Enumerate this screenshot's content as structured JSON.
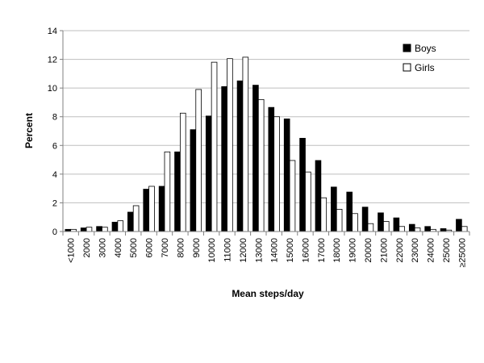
{
  "chart_data": {
    "type": "bar",
    "title": "",
    "xlabel": "Mean steps/day",
    "ylabel": "Percent",
    "ylim": [
      0,
      14
    ],
    "yticks": [
      0,
      2,
      4,
      6,
      8,
      10,
      12,
      14
    ],
    "grid": true,
    "legend_position": "top-right",
    "categories": [
      "<1000",
      "2000",
      "3000",
      "4000",
      "5000",
      "6000",
      "7000",
      "8000",
      "9000",
      "10000",
      "11000",
      "12000",
      "13000",
      "14000",
      "15000",
      "16000",
      "17000",
      "18000",
      "19000",
      "20000",
      "21000",
      "22000",
      "23000",
      "24000",
      "25000",
      "≥25000"
    ],
    "series": [
      {
        "name": "Boys",
        "color": "#000000",
        "values": [
          0.15,
          0.25,
          0.35,
          0.65,
          1.35,
          2.95,
          3.15,
          5.55,
          7.1,
          8.05,
          10.1,
          10.5,
          10.2,
          8.65,
          7.85,
          6.5,
          4.95,
          3.1,
          2.75,
          1.7,
          1.3,
          0.95,
          0.5,
          0.35,
          0.2,
          0.85
        ]
      },
      {
        "name": "Girls",
        "color": "#ffffff",
        "values": [
          0.15,
          0.3,
          0.3,
          0.75,
          1.8,
          3.15,
          5.55,
          8.25,
          9.9,
          11.8,
          12.05,
          12.15,
          9.2,
          8.0,
          4.95,
          4.15,
          2.35,
          1.55,
          1.25,
          0.55,
          0.7,
          0.35,
          0.25,
          0.15,
          0.1,
          0.35
        ]
      }
    ]
  }
}
